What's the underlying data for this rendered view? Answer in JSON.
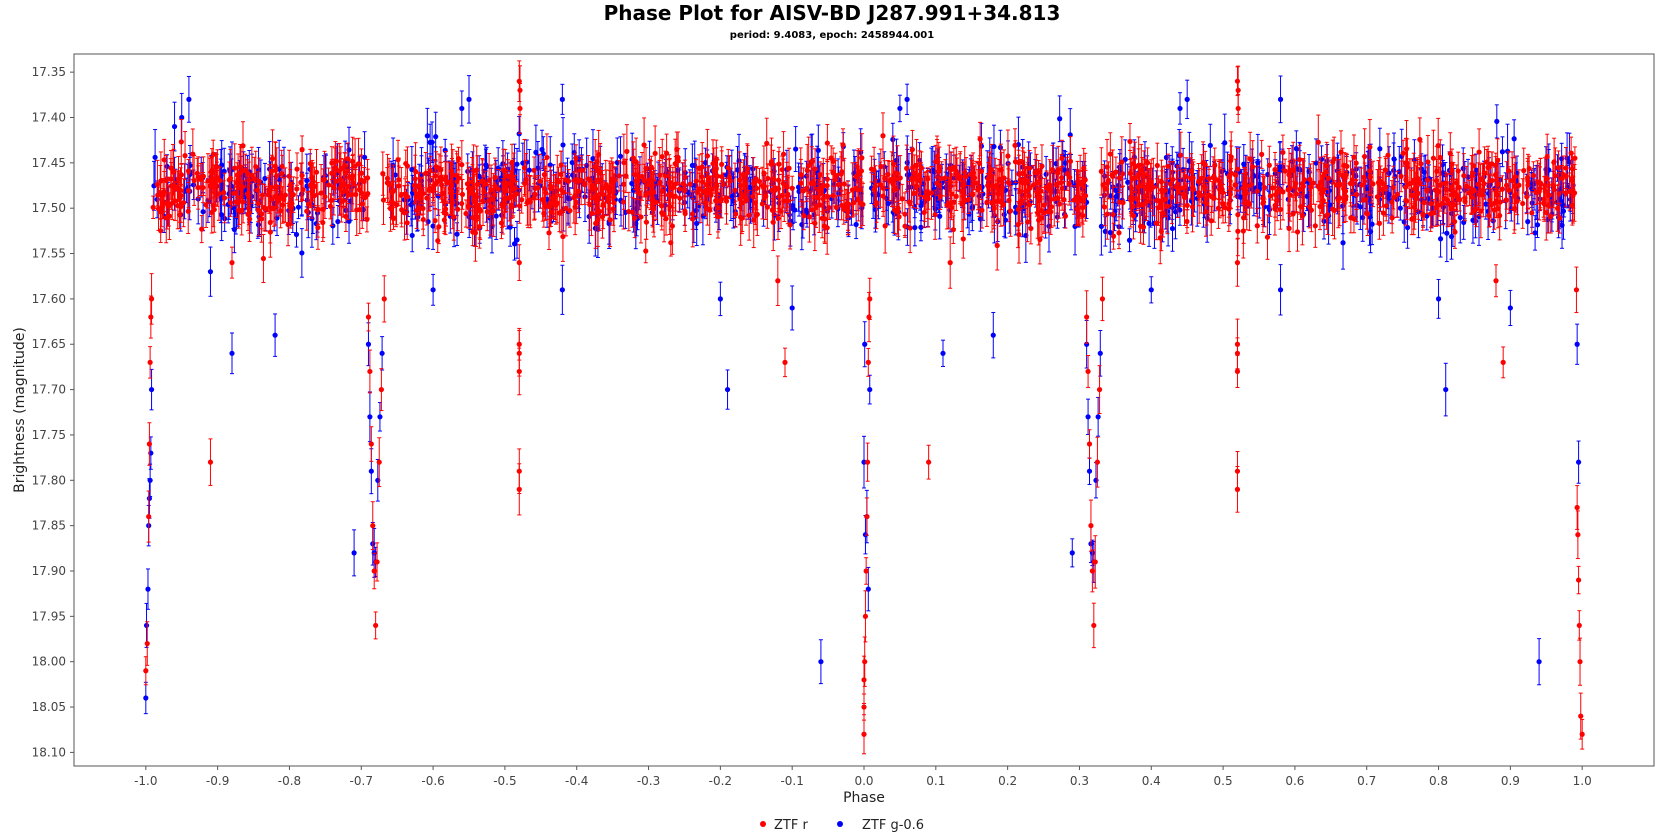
{
  "chart_data": {
    "type": "scatter",
    "title": "Phase Plot for AISV-BD J287.991+34.813",
    "subtitle": "period: 9.4083, epoch: 2458944.001",
    "xlabel": "Phase",
    "ylabel": "Brightness (magnitude)",
    "xlim": [
      -1.1,
      1.1
    ],
    "ylim": [
      17.33,
      18.115
    ],
    "y_inverted": true,
    "x_ticks": [
      "-1.0",
      "-0.9",
      "-0.8",
      "-0.7",
      "-0.6",
      "-0.5",
      "-0.4",
      "-0.3",
      "-0.2",
      "-0.1",
      "0.0",
      "0.1",
      "0.2",
      "0.3",
      "0.4",
      "0.5",
      "0.6",
      "0.7",
      "0.8",
      "0.9",
      "1.0"
    ],
    "x_tick_values": [
      -1.0,
      -0.9,
      -0.8,
      -0.7,
      -0.6,
      -0.5,
      -0.4,
      -0.3,
      -0.2,
      -0.1,
      0.0,
      0.1,
      0.2,
      0.3,
      0.4,
      0.5,
      0.6,
      0.7,
      0.8,
      0.9,
      1.0
    ],
    "y_ticks": [
      "17.35",
      "17.40",
      "17.45",
      "17.50",
      "17.55",
      "17.60",
      "17.65",
      "17.70",
      "17.75",
      "17.80",
      "17.85",
      "17.90",
      "17.95",
      "18.00",
      "18.05",
      "18.10"
    ],
    "y_tick_values": [
      17.35,
      17.4,
      17.45,
      17.5,
      17.55,
      17.6,
      17.65,
      17.7,
      17.75,
      17.8,
      17.85,
      17.9,
      17.95,
      18.0,
      18.05,
      18.1
    ],
    "grid": false,
    "legend_position": "bottom-center",
    "series": [
      {
        "name": "ZTF r",
        "color": "#ff0000",
        "marker": "circle",
        "error_bars": true,
        "points": [
          [
            -1.0,
            18.01
          ],
          [
            -0.998,
            17.98
          ],
          [
            -0.996,
            17.84
          ],
          [
            -0.995,
            17.76
          ],
          [
            -0.994,
            17.67
          ],
          [
            -0.993,
            17.62
          ],
          [
            -0.992,
            17.6
          ],
          [
            -0.91,
            17.78
          ],
          [
            -0.88,
            17.56
          ],
          [
            -0.69,
            17.62
          ],
          [
            -0.688,
            17.68
          ],
          [
            -0.686,
            17.76
          ],
          [
            -0.684,
            17.85
          ],
          [
            -0.682,
            17.9
          ],
          [
            -0.68,
            17.96
          ],
          [
            -0.678,
            17.89
          ],
          [
            -0.675,
            17.78
          ],
          [
            -0.672,
            17.7
          ],
          [
            -0.668,
            17.6
          ],
          [
            -0.48,
            17.36
          ],
          [
            -0.479,
            17.37
          ],
          [
            -0.479,
            17.39
          ],
          [
            -0.48,
            17.56
          ],
          [
            -0.48,
            17.65
          ],
          [
            -0.48,
            17.66
          ],
          [
            -0.48,
            17.68
          ],
          [
            -0.48,
            17.79
          ],
          [
            -0.48,
            17.81
          ],
          [
            -0.12,
            17.58
          ],
          [
            -0.11,
            17.67
          ],
          [
            0.0,
            18.08
          ],
          [
            0.0,
            18.05
          ],
          [
            0.0,
            18.02
          ],
          [
            0.001,
            18.0
          ],
          [
            0.002,
            17.95
          ],
          [
            0.003,
            17.9
          ],
          [
            0.004,
            17.84
          ],
          [
            0.005,
            17.78
          ],
          [
            0.006,
            17.67
          ],
          [
            0.007,
            17.62
          ],
          [
            0.008,
            17.6
          ],
          [
            0.09,
            17.78
          ],
          [
            0.12,
            17.56
          ],
          [
            0.31,
            17.62
          ],
          [
            0.312,
            17.68
          ],
          [
            0.314,
            17.76
          ],
          [
            0.316,
            17.85
          ],
          [
            0.318,
            17.9
          ],
          [
            0.32,
            17.96
          ],
          [
            0.322,
            17.89
          ],
          [
            0.325,
            17.78
          ],
          [
            0.328,
            17.7
          ],
          [
            0.332,
            17.6
          ],
          [
            0.52,
            17.36
          ],
          [
            0.521,
            17.37
          ],
          [
            0.521,
            17.39
          ],
          [
            0.52,
            17.56
          ],
          [
            0.52,
            17.65
          ],
          [
            0.52,
            17.66
          ],
          [
            0.52,
            17.68
          ],
          [
            0.52,
            17.79
          ],
          [
            0.52,
            17.81
          ],
          [
            0.88,
            17.58
          ],
          [
            0.89,
            17.67
          ],
          [
            0.992,
            17.59
          ],
          [
            0.993,
            17.83
          ],
          [
            0.994,
            17.86
          ],
          [
            0.995,
            17.91
          ],
          [
            0.996,
            17.96
          ],
          [
            0.997,
            18.0
          ],
          [
            0.998,
            18.06
          ],
          [
            1.0,
            18.08
          ]
        ],
        "baseline": {
          "description_free": true,
          "center": 17.48,
          "spread": 0.035,
          "phase_ranges": [
            [
              -0.99,
              -0.69
            ],
            [
              -0.67,
              0.0
            ],
            [
              0.01,
              0.31
            ],
            [
              0.33,
              0.99
            ]
          ],
          "count": 1400
        }
      },
      {
        "name": "ZTF g-0.6",
        "color": "#0000ff",
        "marker": "circle",
        "error_bars": true,
        "points": [
          [
            -1.0,
            18.04
          ],
          [
            -0.999,
            17.96
          ],
          [
            -0.997,
            17.92
          ],
          [
            -0.996,
            17.85
          ],
          [
            -0.995,
            17.82
          ],
          [
            -0.994,
            17.8
          ],
          [
            -0.993,
            17.77
          ],
          [
            -0.992,
            17.7
          ],
          [
            -0.96,
            17.41
          ],
          [
            -0.95,
            17.4
          ],
          [
            -0.94,
            17.38
          ],
          [
            -0.91,
            17.57
          ],
          [
            -0.88,
            17.66
          ],
          [
            -0.82,
            17.64
          ],
          [
            -0.71,
            17.88
          ],
          [
            -0.69,
            17.65
          ],
          [
            -0.688,
            17.73
          ],
          [
            -0.686,
            17.79
          ],
          [
            -0.684,
            17.87
          ],
          [
            -0.682,
            17.88
          ],
          [
            -0.68,
            17.89
          ],
          [
            -0.677,
            17.8
          ],
          [
            -0.674,
            17.73
          ],
          [
            -0.671,
            17.66
          ],
          [
            -0.6,
            17.59
          ],
          [
            -0.56,
            17.39
          ],
          [
            -0.55,
            17.38
          ],
          [
            -0.42,
            17.59
          ],
          [
            -0.42,
            17.38
          ],
          [
            -0.2,
            17.6
          ],
          [
            -0.19,
            17.7
          ],
          [
            -0.1,
            17.61
          ],
          [
            -0.06,
            18.0
          ],
          [
            0.0,
            17.78
          ],
          [
            0.001,
            17.65
          ],
          [
            0.002,
            17.86
          ],
          [
            0.004,
            17.84
          ],
          [
            0.006,
            17.92
          ],
          [
            0.008,
            17.7
          ],
          [
            0.05,
            17.39
          ],
          [
            0.06,
            17.38
          ],
          [
            0.11,
            17.66
          ],
          [
            0.18,
            17.64
          ],
          [
            0.29,
            17.88
          ],
          [
            0.31,
            17.65
          ],
          [
            0.312,
            17.73
          ],
          [
            0.314,
            17.79
          ],
          [
            0.316,
            17.87
          ],
          [
            0.318,
            17.88
          ],
          [
            0.32,
            17.89
          ],
          [
            0.323,
            17.8
          ],
          [
            0.326,
            17.73
          ],
          [
            0.329,
            17.66
          ],
          [
            0.4,
            17.59
          ],
          [
            0.44,
            17.39
          ],
          [
            0.45,
            17.38
          ],
          [
            0.58,
            17.59
          ],
          [
            0.58,
            17.38
          ],
          [
            0.8,
            17.6
          ],
          [
            0.81,
            17.7
          ],
          [
            0.9,
            17.61
          ],
          [
            0.94,
            18.0
          ],
          [
            0.993,
            17.65
          ],
          [
            0.995,
            17.78
          ]
        ],
        "baseline": {
          "center": 17.48,
          "spread": 0.04,
          "phase_ranges": [
            [
              -0.99,
              -0.69
            ],
            [
              -0.67,
              0.0
            ],
            [
              0.01,
              0.31
            ],
            [
              0.33,
              0.99
            ]
          ],
          "count": 900
        }
      }
    ]
  },
  "legend": {
    "items": [
      {
        "label": "ZTF r",
        "color": "#ff0000"
      },
      {
        "label": "ZTF g-0.6",
        "color": "#0000ff"
      }
    ]
  }
}
